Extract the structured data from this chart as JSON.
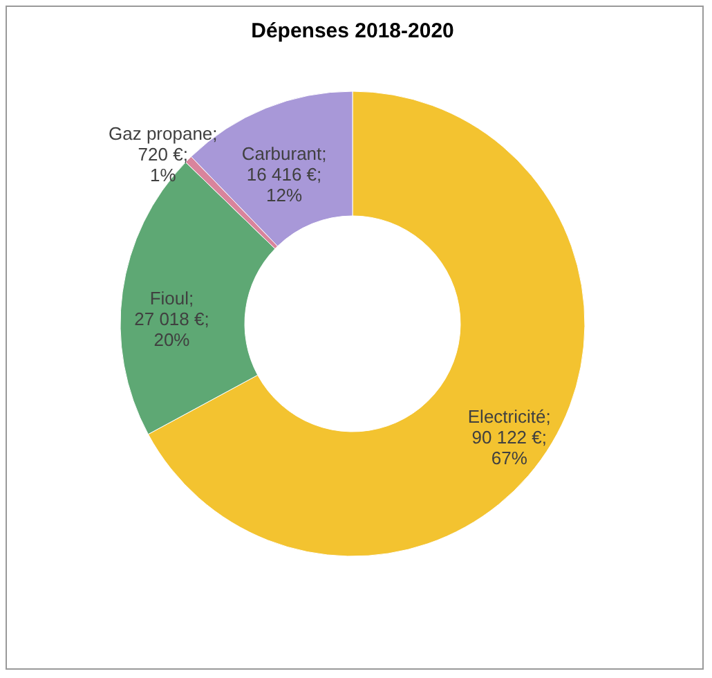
{
  "chart_data": {
    "type": "donut",
    "title": "Dépenses 2018-2020",
    "categories": [
      "Electricité",
      "Fioul",
      "Gaz propane",
      "Carburant"
    ],
    "values": [
      90122,
      27018,
      720,
      16416
    ],
    "colors": [
      "#f3c330",
      "#5ea874",
      "#d9849c",
      "#a898d8"
    ],
    "value_labels": [
      ";\n90 122 €;\n67%",
      ";\n27 018 €;\n20%",
      ";\n720 €;\n1%",
      ";\n16 416 €;\n12%"
    ],
    "legend": false
  }
}
